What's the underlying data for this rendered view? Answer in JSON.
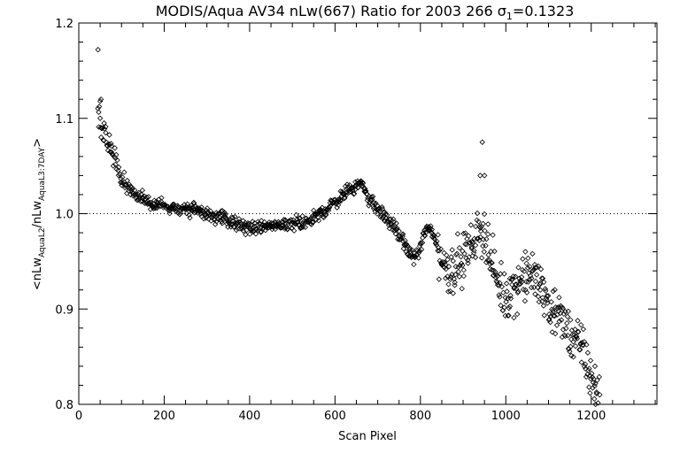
{
  "chart_data": {
    "type": "scatter",
    "title": "MODIS/Aqua AV34 nLw(667) Ratio for 2003 266 σ",
    "title_subscript": "1",
    "title_suffix": "=0.1323",
    "xlabel": "Scan Pixel",
    "ylabel_parts": {
      "open": "<nLw",
      "sub1": "AquaL2",
      "mid": "/nLw",
      "sub2": "AquaL3:7DAY",
      "close": ">"
    },
    "xlim": [
      0,
      1354
    ],
    "ylim": [
      0.8,
      1.2
    ],
    "xticks": [
      0,
      200,
      400,
      600,
      800,
      1000,
      1200
    ],
    "yticks": [
      0.8,
      0.9,
      1.0,
      1.1,
      1.2
    ],
    "ytick_labels": [
      "0.8",
      "0.9",
      "1.0",
      "1.1",
      "1.2"
    ],
    "reference_line_y": 1.0,
    "grid": false,
    "marker": "diamond",
    "series": [
      {
        "trend": [
          [
            45,
            1.11
          ],
          [
            50,
            1.095
          ],
          [
            60,
            1.085
          ],
          [
            70,
            1.075
          ],
          [
            80,
            1.065
          ],
          [
            90,
            1.05
          ],
          [
            100,
            1.04
          ],
          [
            110,
            1.03
          ],
          [
            120,
            1.025
          ],
          [
            140,
            1.018
          ],
          [
            160,
            1.013
          ],
          [
            200,
            1.008
          ],
          [
            250,
            1.005
          ],
          [
            300,
            1.0
          ],
          [
            340,
            0.995
          ],
          [
            370,
            0.988
          ],
          [
            400,
            0.986
          ],
          [
            450,
            0.986
          ],
          [
            500,
            0.99
          ],
          [
            540,
            0.993
          ],
          [
            560,
            0.998
          ],
          [
            580,
            1.005
          ],
          [
            600,
            1.012
          ],
          [
            620,
            1.02
          ],
          [
            640,
            1.027
          ],
          [
            655,
            1.032
          ],
          [
            665,
            1.03
          ],
          [
            680,
            1.015
          ],
          [
            700,
            1.005
          ],
          [
            720,
            0.995
          ],
          [
            740,
            0.985
          ],
          [
            760,
            0.97
          ],
          [
            775,
            0.958
          ],
          [
            790,
            0.955
          ],
          [
            800,
            0.965
          ],
          [
            810,
            0.98
          ],
          [
            825,
            0.985
          ],
          [
            840,
            0.965
          ],
          [
            855,
            0.945
          ],
          [
            870,
            0.94
          ],
          [
            880,
            0.945
          ],
          [
            900,
            0.955
          ],
          [
            920,
            0.965
          ],
          [
            935,
            0.98
          ],
          [
            950,
            0.985
          ],
          [
            960,
            0.96
          ],
          [
            975,
            0.935
          ],
          [
            990,
            0.915
          ],
          [
            1010,
            0.918
          ],
          [
            1030,
            0.928
          ],
          [
            1050,
            0.935
          ],
          [
            1065,
            0.935
          ],
          [
            1080,
            0.925
          ],
          [
            1100,
            0.905
          ],
          [
            1120,
            0.895
          ],
          [
            1140,
            0.88
          ],
          [
            1160,
            0.87
          ],
          [
            1180,
            0.855
          ],
          [
            1200,
            0.83
          ],
          [
            1220,
            0.805
          ]
        ],
        "outliers": [
          [
            45,
            1.172
          ],
          [
            50,
            1.118
          ],
          [
            52,
            1.12
          ],
          [
            940,
            1.04
          ],
          [
            945,
            1.075
          ],
          [
            950,
            1.04
          ],
          [
            1210,
            0.8
          ],
          [
            1220,
            0.81
          ]
        ]
      }
    ]
  }
}
